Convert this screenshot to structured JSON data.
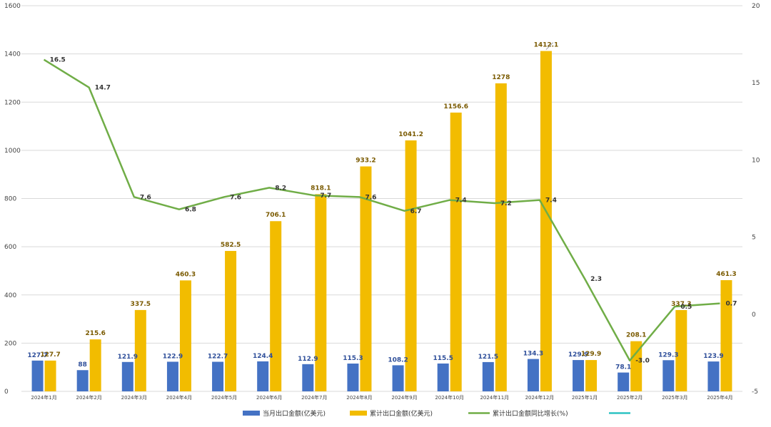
{
  "chart_data": {
    "type": "bar+line",
    "title": "",
    "categories": [
      "2024年1月",
      "2024年2月",
      "2024年3月",
      "2024年4月",
      "2024年5月",
      "2024年6月",
      "2024年7月",
      "2024年8月",
      "2024年9月",
      "2024年10月",
      "2024年11月",
      "2024年12月",
      "2025年1月",
      "2025年2月",
      "2025年3月",
      "2025年4月"
    ],
    "series": [
      {
        "name": "当月出口金额(亿美元)",
        "type": "bar",
        "axis": "left",
        "color": "#4472C4",
        "values": [
          127.7,
          88,
          121.9,
          122.9,
          122.7,
          124.4,
          112.9,
          115.3,
          108.2,
          115.5,
          121.5,
          134.3,
          129.9,
          78.1,
          129.3,
          123.9
        ],
        "labels": [
          "127.7",
          "88",
          "121.9",
          "122.9",
          "122.7",
          "124.4",
          "112.9",
          "115.3",
          "108.2",
          "115.5",
          "121.5",
          "134.3",
          "129.9",
          "78.1",
          "129.3",
          "123.9"
        ]
      },
      {
        "name": "累计出口金额(亿美元)",
        "type": "bar",
        "axis": "left",
        "color": "#F2BC00",
        "values": [
          127.7,
          215.6,
          337.5,
          460.3,
          582.5,
          706.1,
          818.1,
          933.2,
          1041.2,
          1156.6,
          1278,
          1412.1,
          129.9,
          208.1,
          337.3,
          461.3
        ],
        "labels": [
          "127.7",
          "215.6",
          "337.5",
          "460.3",
          "582.5",
          "706.1",
          "818.1",
          "933.2",
          "1041.2",
          "1156.6",
          "1278",
          "1412.1",
          "129.9",
          "208.1",
          "337.3",
          "461.3"
        ]
      },
      {
        "name": "累计出口金额同比增长(%)",
        "type": "line",
        "axis": "right",
        "color": "#70AD47",
        "values": [
          16.5,
          14.7,
          7.6,
          6.8,
          7.6,
          8.2,
          7.7,
          7.6,
          6.7,
          7.4,
          7.2,
          7.4,
          2.3,
          -3.0,
          0.5,
          0.7
        ],
        "labels": [
          "16.5",
          "14.7",
          "7.6",
          "6.8",
          "7.6",
          "8.2",
          "7.7",
          "7.6",
          "6.7",
          "7.4",
          "7.2",
          "7.4",
          "2.3",
          "-3.0",
          "0.5",
          "0.7"
        ]
      },
      {
        "name": "",
        "type": "legend-only",
        "color": "#2EC4C4"
      }
    ],
    "y_left": {
      "range": [
        0,
        1600
      ],
      "ticks": [
        "0",
        "200",
        "400",
        "600",
        "800",
        "1000",
        "1200",
        "1400",
        "1600"
      ]
    },
    "y_right": {
      "range": [
        -5,
        20
      ],
      "ticks": [
        "-5",
        "0",
        "5",
        "10",
        "15",
        "20"
      ]
    },
    "grid": true,
    "legend": "bottom"
  }
}
